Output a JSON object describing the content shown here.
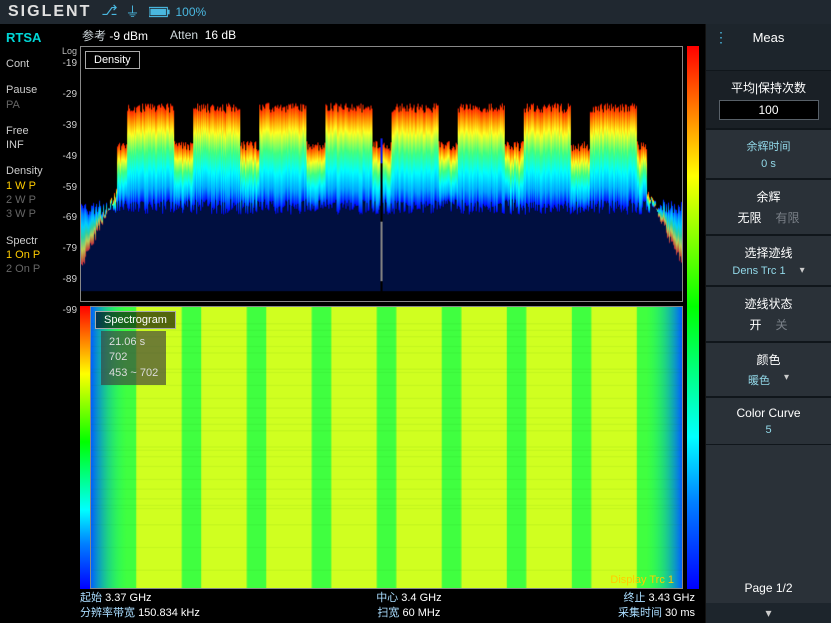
{
  "brand": "SIGLENT",
  "battery_pct": "100%",
  "mode": "RTSA",
  "left": {
    "cont": "Cont",
    "pause": "Pause",
    "pa": "PA",
    "free": "Free",
    "inf": "INF",
    "density": "Density",
    "wp_rows": [
      "1  W  P",
      "2  W  P",
      "3  W  P"
    ],
    "spectr": "Spectr",
    "spectr_on": "1  On  P",
    "spectr_off": "2  On  P"
  },
  "params": {
    "ref_label": "参考",
    "ref_value": "-9 dBm",
    "atten_label": "Atten",
    "atten_value": "16 dB"
  },
  "yaxis": {
    "label": "Log",
    "ticks": [
      "-19",
      "-29",
      "-39",
      "-49",
      "-59",
      "-69",
      "-79",
      "-89",
      "-99"
    ]
  },
  "density_title": "Density",
  "spectrogram": {
    "title": "Spectrogram",
    "time": "21.06 s",
    "idx": "702",
    "range": "453 ~ 702",
    "overlay": "Display Trc 1"
  },
  "bottom": {
    "start_k": "起始",
    "start_v": "3.37 GHz",
    "rbw_k": "分辨率带宽",
    "rbw_v": "150.834 kHz",
    "center_k": "中心",
    "center_v": "3.4 GHz",
    "span_k": "扫宽",
    "span_v": "60 MHz",
    "stop_k": "终止",
    "stop_v": "3.43 GHz",
    "acq_k": "采集时间",
    "acq_v": "30 ms"
  },
  "side": {
    "title": "Meas",
    "avg_hold": "平均|保持次数",
    "avg_hold_value": "100",
    "persist_time_k": "余辉时间",
    "persist_time_v": "0 s",
    "afterglow": "余辉",
    "afterglow_inf": "无限",
    "afterglow_finite": "有限",
    "sel_trace": "选择迹线",
    "sel_trace_v": "Dens Trc 1",
    "trace_state": "迹线状态",
    "trace_on": "开",
    "trace_off": "关",
    "color": "颜色",
    "color_v": "暖色",
    "color_curve": "Color Curve",
    "color_curve_v": "5",
    "page": "Page 1/2"
  },
  "plot": {
    "num_peaks": 8,
    "bg": "#000000",
    "density_colors": [
      "#0000ff",
      "#00a0ff",
      "#00ffff",
      "#40ff80",
      "#ffff20",
      "#ff9000",
      "#ff2000"
    ],
    "baseline_db": -99,
    "shoulder_db": -48,
    "peak_db": -33,
    "spectrogram_base": "#40ff40",
    "spectrogram_stripe": "#d0ff20"
  }
}
